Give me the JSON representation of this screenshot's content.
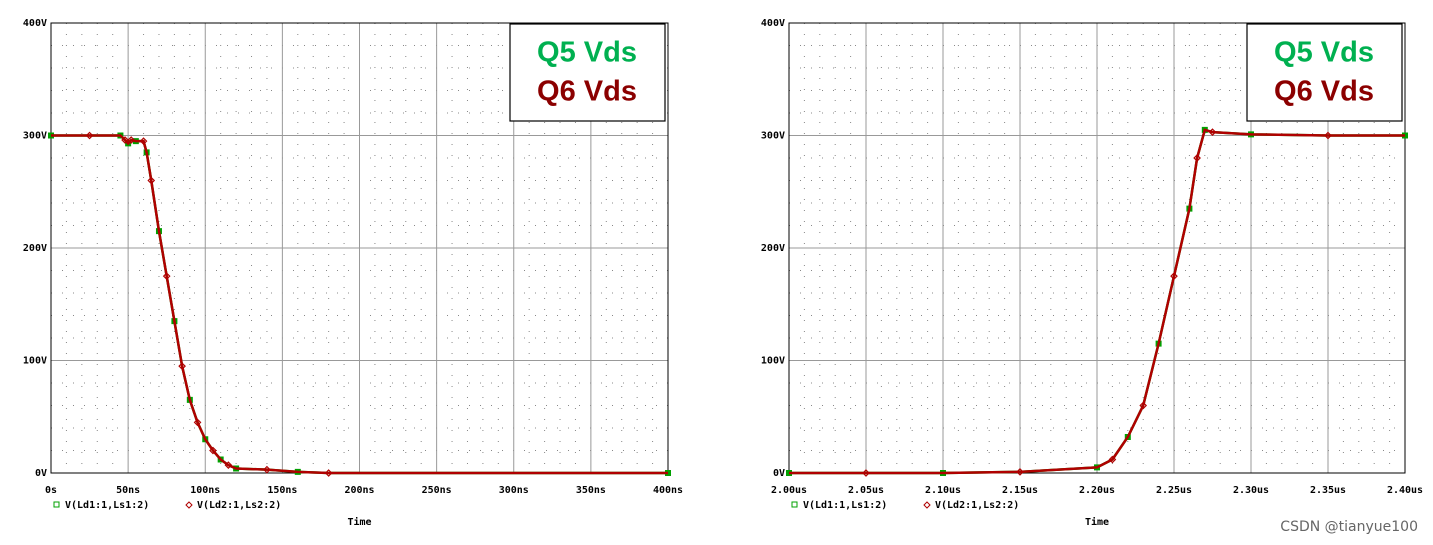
{
  "chart_data": [
    {
      "type": "line",
      "x_label": "Time",
      "xlim": [
        0,
        400
      ],
      "xticks": [
        {
          "value": 0,
          "label": "0s"
        },
        {
          "value": 50,
          "label": "50ns"
        },
        {
          "value": 100,
          "label": "100ns"
        },
        {
          "value": 150,
          "label": "150ns"
        },
        {
          "value": 200,
          "label": "200ns"
        },
        {
          "value": 250,
          "label": "250ns"
        },
        {
          "value": 300,
          "label": "300ns"
        },
        {
          "value": 350,
          "label": "350ns"
        },
        {
          "value": 400,
          "label": "400ns"
        }
      ],
      "ylim": [
        0,
        400
      ],
      "yticks": [
        {
          "value": 0,
          "label": "0V"
        },
        {
          "value": 100,
          "label": "100V"
        },
        {
          "value": 200,
          "label": "200V"
        },
        {
          "value": 300,
          "label": "300V"
        },
        {
          "value": 400,
          "label": "400V"
        }
      ],
      "grid": true,
      "x": [
        0,
        25,
        45,
        48,
        50,
        52,
        55,
        60,
        62,
        65,
        70,
        75,
        80,
        85,
        90,
        95,
        100,
        105,
        110,
        115,
        120,
        140,
        160,
        180,
        400
      ],
      "series": [
        {
          "name": "V(Ld1:1,Ls1:2)",
          "color": "#00a000",
          "marker": "square",
          "values": [
            300,
            300,
            300,
            296,
            293,
            296,
            295,
            295,
            285,
            260,
            215,
            175,
            135,
            95,
            65,
            45,
            30,
            20,
            12,
            7,
            4,
            3,
            1,
            0,
            0
          ]
        },
        {
          "name": "V(Ld2:1,Ls2:2)",
          "color": "#b00000",
          "marker": "diamond",
          "values": [
            300,
            300,
            300,
            296,
            293,
            296,
            295,
            295,
            285,
            260,
            215,
            175,
            135,
            95,
            65,
            45,
            30,
            20,
            12,
            7,
            4,
            3,
            1,
            0,
            0
          ]
        }
      ],
      "annotations": [
        {
          "text": "Q5 Vds",
          "color": "#00b050"
        },
        {
          "text": "Q6 Vds",
          "color": "#8b0000"
        }
      ]
    },
    {
      "type": "line",
      "x_label": "Time",
      "xlim": [
        2.0,
        2.4
      ],
      "xticks": [
        {
          "value": 2.0,
          "label": "2.00us"
        },
        {
          "value": 2.05,
          "label": "2.05us"
        },
        {
          "value": 2.1,
          "label": "2.10us"
        },
        {
          "value": 2.15,
          "label": "2.15us"
        },
        {
          "value": 2.2,
          "label": "2.20us"
        },
        {
          "value": 2.25,
          "label": "2.25us"
        },
        {
          "value": 2.3,
          "label": "2.30us"
        },
        {
          "value": 2.35,
          "label": "2.35us"
        },
        {
          "value": 2.4,
          "label": "2.40us"
        }
      ],
      "ylim": [
        0,
        400
      ],
      "yticks": [
        {
          "value": 0,
          "label": "0V"
        },
        {
          "value": 100,
          "label": "100V"
        },
        {
          "value": 200,
          "label": "200V"
        },
        {
          "value": 300,
          "label": "300V"
        },
        {
          "value": 400,
          "label": "400V"
        }
      ],
      "grid": true,
      "x": [
        2.0,
        2.05,
        2.1,
        2.15,
        2.2,
        2.21,
        2.22,
        2.23,
        2.24,
        2.25,
        2.26,
        2.265,
        2.27,
        2.275,
        2.3,
        2.35,
        2.4
      ],
      "series": [
        {
          "name": "V(Ld1:1,Ls1:2)",
          "color": "#00a000",
          "marker": "square",
          "values": [
            0,
            0,
            0,
            1,
            5,
            12,
            32,
            60,
            115,
            175,
            235,
            280,
            305,
            303,
            301,
            300,
            300
          ]
        },
        {
          "name": "V(Ld2:1,Ls2:2)",
          "color": "#b00000",
          "marker": "diamond",
          "values": [
            0,
            0,
            0,
            1,
            5,
            12,
            32,
            60,
            115,
            175,
            235,
            280,
            305,
            303,
            301,
            300,
            300
          ]
        }
      ],
      "annotations": [
        {
          "text": "Q5 Vds",
          "color": "#00b050"
        },
        {
          "text": "Q6 Vds",
          "color": "#8b0000"
        }
      ]
    }
  ],
  "watermark": "CSDN @tianyue100"
}
